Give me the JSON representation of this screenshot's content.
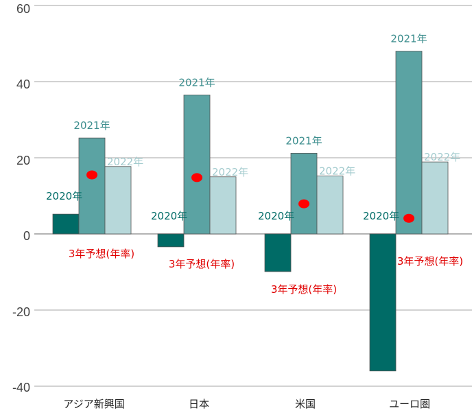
{
  "chart_data": {
    "type": "bar",
    "categories": [
      "アジア新興国",
      "日本",
      "米国",
      "ユーロ圏"
    ],
    "series": [
      {
        "name": "2020年",
        "color": "#006b66",
        "values": [
          5.2,
          -3.4,
          -9.9,
          -36.0
        ]
      },
      {
        "name": "2021年",
        "color": "#5ba3a3",
        "values": [
          25.2,
          36.5,
          21.2,
          48.0
        ]
      },
      {
        "name": "2022年",
        "color": "#b7d8da",
        "values": [
          17.7,
          15.0,
          15.2,
          18.9
        ]
      }
    ],
    "forecast": {
      "label": "3年予想(年率)",
      "color": "#ff0000",
      "values": [
        15.5,
        14.8,
        7.9,
        4.1
      ]
    },
    "yticks": [
      "60",
      "40",
      "20",
      "0",
      "-20",
      "-40"
    ],
    "ylim": [
      -40,
      60
    ],
    "grid": true
  }
}
